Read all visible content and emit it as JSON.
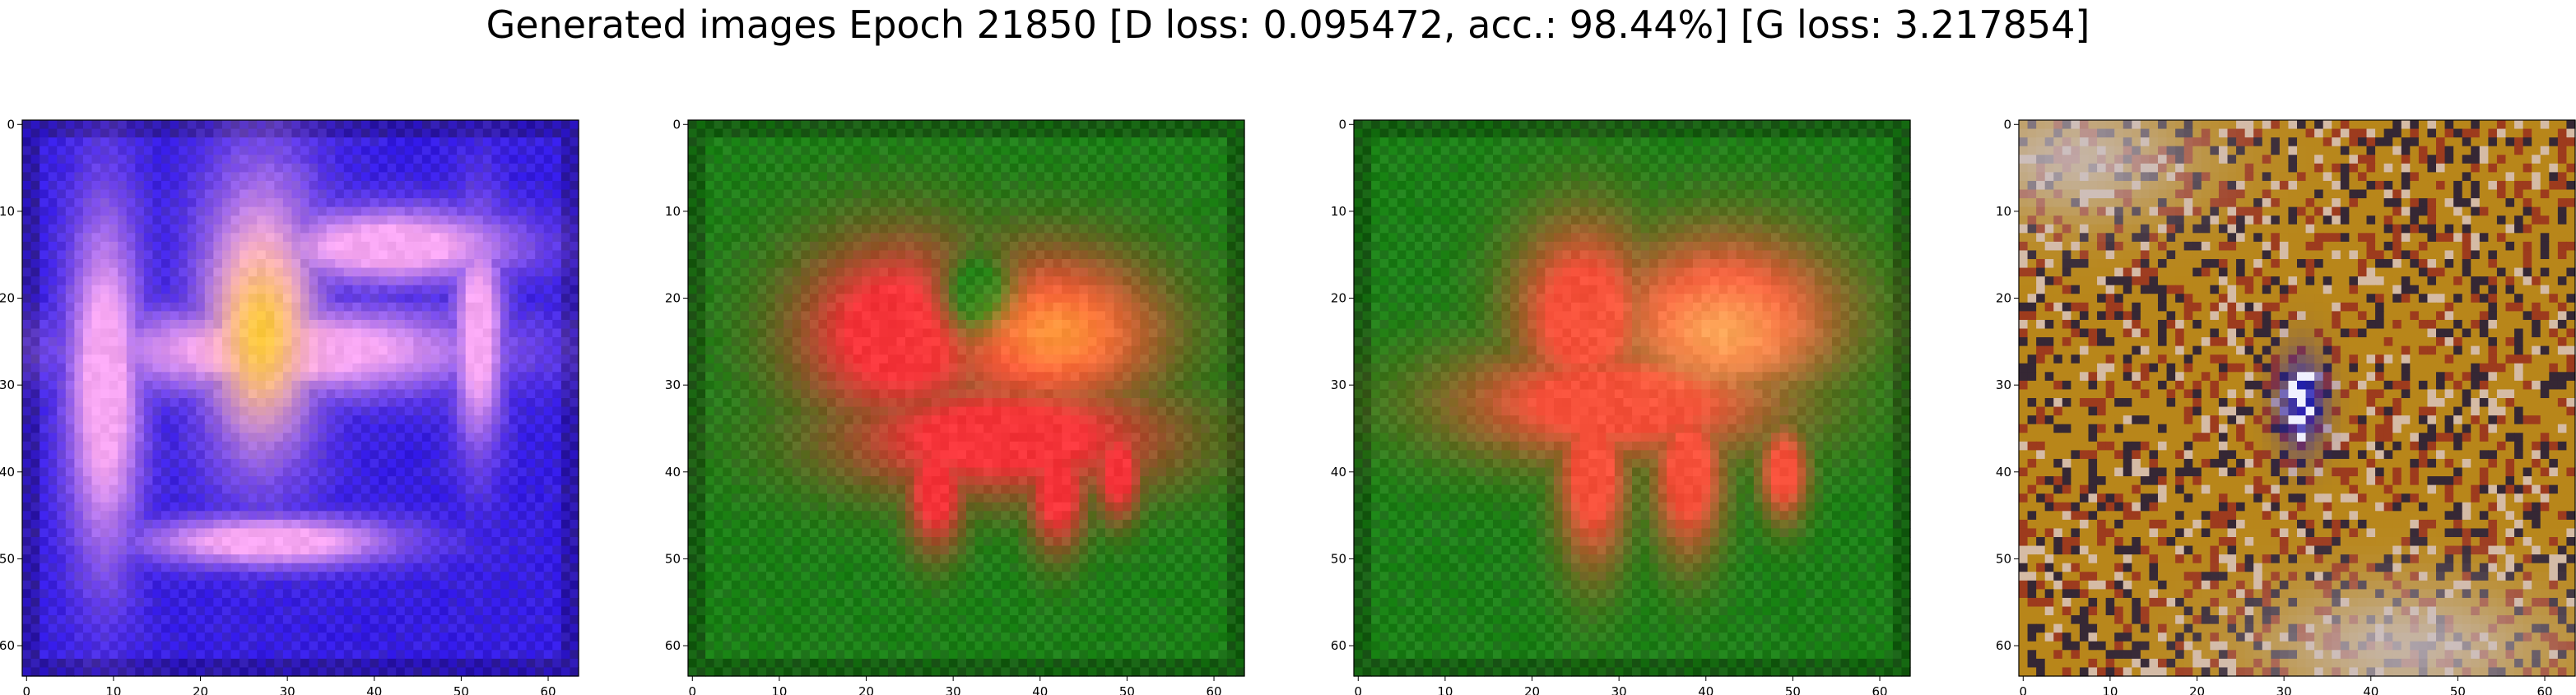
{
  "figure": {
    "title": "Generated images Epoch 21850 [D loss: 0.095472, acc.: 98.44%] [G loss: 3.217854]"
  },
  "axes": {
    "ticks": [
      0,
      10,
      20,
      30,
      40,
      50,
      60
    ],
    "tick_labels": [
      "0",
      "10",
      "20",
      "30",
      "40",
      "50",
      "60"
    ],
    "xlim": [
      -0.5,
      63.5
    ],
    "ylim": [
      63.5,
      -0.5
    ],
    "pixel_grid": 64
  },
  "panels": [
    {
      "name": "sample-1",
      "base_color": "#3a21f2",
      "blob_color": "#f6a6f2",
      "accent_color": "#ffd400",
      "dark_color": "#1a0a5a"
    },
    {
      "name": "sample-2",
      "base_color": "#1f8a1a",
      "blob_color": "#f6343a",
      "accent_color": "#ffb43a",
      "dark_color": "#0a2a08"
    },
    {
      "name": "sample-3",
      "base_color": "#1f8a1a",
      "blob_color": "#f6503a",
      "accent_color": "#ffc060",
      "dark_color": "#0a2a08"
    },
    {
      "name": "sample-4",
      "base_color": "#b8861a",
      "blob_color": "#6a2a10",
      "accent_color": "#c9c0c6",
      "dark_color": "#140f3a"
    }
  ]
}
